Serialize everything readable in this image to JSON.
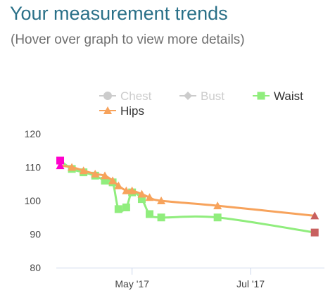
{
  "header": {
    "title": "Your measurement trends",
    "subtitle": "(Hover over graph to view more details)"
  },
  "chart_data": {
    "type": "line",
    "title": "",
    "xlabel": "",
    "ylabel": "",
    "ylim": [
      80,
      120
    ],
    "yticks": [
      80,
      90,
      100,
      110,
      120
    ],
    "xlim": [
      "2017-03-23",
      "2017-08-08"
    ],
    "xticks": [
      {
        "date": "2017-05-01",
        "label": "May '17"
      },
      {
        "date": "2017-07-01",
        "label": "Jul '17"
      }
    ],
    "grid": false,
    "legend": "top",
    "series": [
      {
        "name": "Chest",
        "color": "#cccccc",
        "marker": "circle",
        "visible": false,
        "points": []
      },
      {
        "name": "Bust",
        "color": "#cccccc",
        "marker": "diamond",
        "visible": false,
        "points": []
      },
      {
        "name": "Waist",
        "color": "#90ed7d",
        "marker": "square",
        "visible": true,
        "first_marker_color": "#ff00cc",
        "last_marker_color": "#c8605f",
        "points": [
          {
            "x": "2017-03-25",
            "y": 112
          },
          {
            "x": "2017-03-31",
            "y": 109.5
          },
          {
            "x": "2017-04-06",
            "y": 108.5
          },
          {
            "x": "2017-04-12",
            "y": 107.5
          },
          {
            "x": "2017-04-17",
            "y": 106
          },
          {
            "x": "2017-04-21",
            "y": 105.5
          },
          {
            "x": "2017-04-24",
            "y": 97.5
          },
          {
            "x": "2017-04-28",
            "y": 98
          },
          {
            "x": "2017-05-01",
            "y": 102.5
          },
          {
            "x": "2017-05-06",
            "y": 100.5
          },
          {
            "x": "2017-05-10",
            "y": 96
          },
          {
            "x": "2017-05-16",
            "y": 95
          },
          {
            "x": "2017-06-14",
            "y": 95
          },
          {
            "x": "2017-08-03",
            "y": 90.5
          }
        ]
      },
      {
        "name": "Hips",
        "color": "#f7a35c",
        "marker": "triangle",
        "visible": true,
        "first_marker_color": "#ff00cc",
        "last_marker_color": "#c8605f",
        "points": [
          {
            "x": "2017-03-25",
            "y": 110.5
          },
          {
            "x": "2017-03-31",
            "y": 110
          },
          {
            "x": "2017-04-06",
            "y": 109
          },
          {
            "x": "2017-04-12",
            "y": 108
          },
          {
            "x": "2017-04-17",
            "y": 107.5
          },
          {
            "x": "2017-04-21",
            "y": 106
          },
          {
            "x": "2017-04-24",
            "y": 104.5
          },
          {
            "x": "2017-04-28",
            "y": 103
          },
          {
            "x": "2017-05-01",
            "y": 103
          },
          {
            "x": "2017-05-06",
            "y": 102
          },
          {
            "x": "2017-05-10",
            "y": 101
          },
          {
            "x": "2017-05-16",
            "y": 100
          },
          {
            "x": "2017-06-14",
            "y": 98.5
          },
          {
            "x": "2017-08-03",
            "y": 95.5
          }
        ]
      }
    ]
  }
}
